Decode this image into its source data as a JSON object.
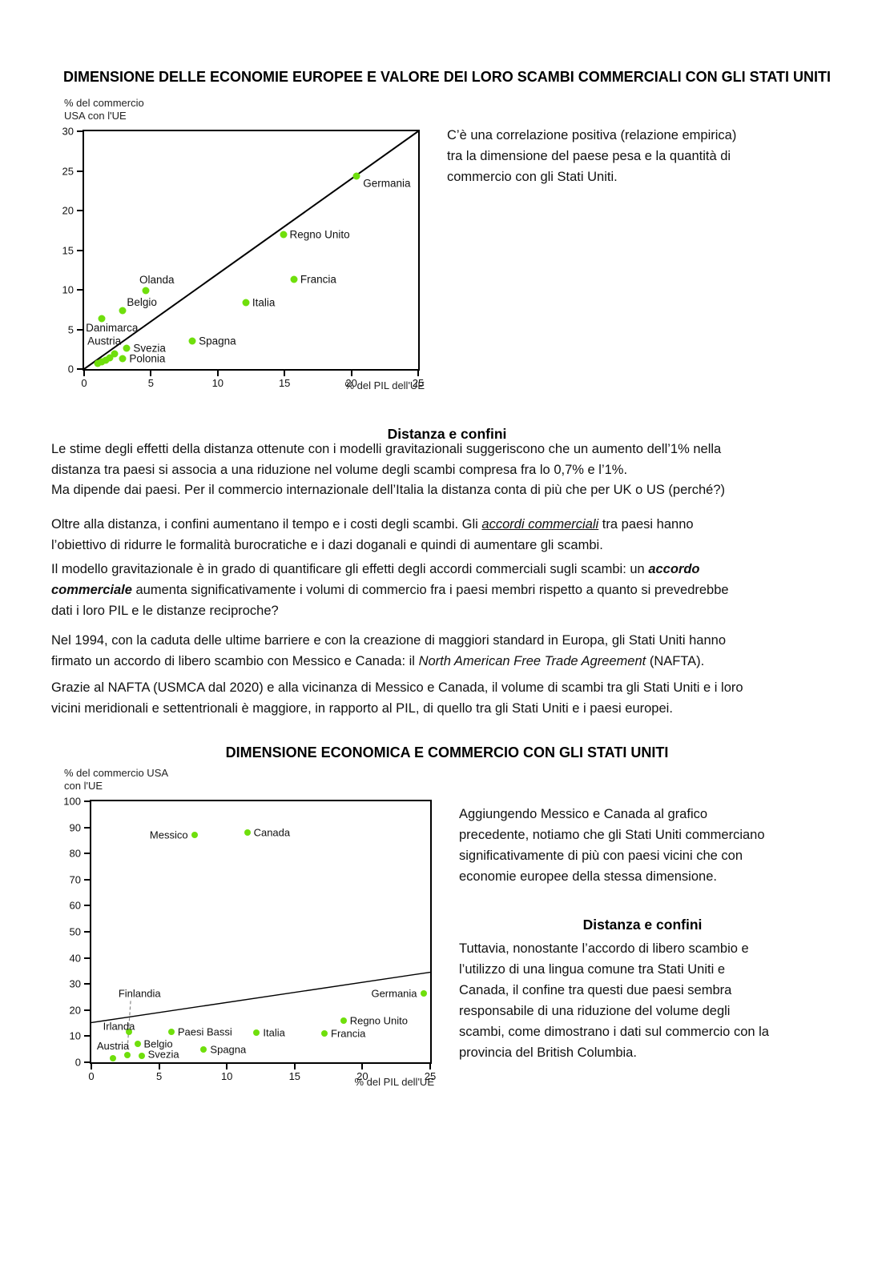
{
  "colors": {
    "dot": "#6FDF0C",
    "axis": "#000000",
    "text": "#111111",
    "connector": "#888888"
  },
  "texts": {
    "side1": "C’è una correlazione positiva (relazione empirica)\ntra la dimensione del paese pesa e la quantità di\ncommercio con gli Stati Uniti.",
    "heading_distanza1": "Distanza e confini",
    "body": [
      {
        "segments": [
          {
            "t": "Le stime degli effetti della distanza ottenute con i modelli gravitazionali suggeriscono che un aumento dell’1% nella\ndistanza tra paesi si associa a una riduzione nel volume degli scambi compresa fra lo 0,7% e l’1%."
          }
        ]
      },
      {
        "segments": [
          {
            "t": "Ma dipende dai paesi. Per il commercio internazionale dell’Italia la distanza conta di più che per UK o US (perché?)"
          }
        ]
      },
      {
        "segments": [
          {
            "t": "Oltre alla distanza, i confini aumentano il tempo e i costi degli scambi. Gli "
          },
          {
            "t": "accordi commerciali",
            "style": "italic-underline"
          },
          {
            "t": " tra paesi hanno\nl’obiettivo di ridurre le formalità burocratiche e i dazi doganali e quindi di aumentare gli scambi."
          }
        ]
      },
      {
        "segments": [
          {
            "t": "Il modello gravitazionale è in grado di quantificare gli effetti degli accordi commerciali sugli scambi: un "
          },
          {
            "t": "accordo\ncommerciale",
            "style": "bold-italic"
          },
          {
            "t": " aumenta significativamente i volumi di commercio fra i paesi membri rispetto a quanto si prevedrebbe\ndati i loro PIL e le distanze reciproche?"
          }
        ]
      },
      {
        "segments": [
          {
            "t": "Nel 1994, con la caduta delle ultime barriere e con la creazione di maggiori standard in Europa, gli Stati Uniti hanno\nfirmato un accordo di libero scambio con Messico e Canada: il "
          },
          {
            "t": "North American Free Trade Agreement",
            "style": "italic"
          },
          {
            "t": " (NAFTA)."
          }
        ]
      },
      {
        "segments": [
          {
            "t": "Grazie al NAFTA (USMCA dal 2020) e alla vicinanza di Messico e Canada, il volume di scambi tra gli Stati Uniti e i loro\nvicini meridionali e settentrionali è maggiore, in rapporto al PIL, di quello tra gli Stati Uniti e i paesi europei."
          }
        ]
      }
    ],
    "side2_p1": "Aggiungendo Messico e Canada al grafico\nprecedente, notiamo che gli Stati Uniti commerciano\nsignificativamente di più con paesi vicini che con\neconomie europee della stessa dimensione.",
    "heading_distanza2": "Distanza e confini",
    "side2_p2": "Tuttavia, nonostante l’accordo di libero scambio e\nl’utilizzo di una lingua comune tra Stati Uniti e\nCanada, il confine tra questi due paesi sembra\nresponsabile di una riduzione del volume degli\nscambi, come dimostrano i dati sul commercio con la\nprovincia del British Columbia."
  },
  "chart_data": [
    {
      "type": "scatter",
      "title": "DIMENSIONE DELLE ECONOMIE EUROPEE E VALORE DEI LORO SCAMBI COMMERCIALI CON GLI STATI UNITI",
      "ylabel_lines": [
        "% del commercio",
        "USA con l'UE"
      ],
      "xlabel": "% del PIL dell'UE",
      "xlim": [
        0,
        25
      ],
      "ylim": [
        0,
        30
      ],
      "xticks": [
        0,
        5,
        10,
        15,
        20,
        25
      ],
      "yticks": [
        0,
        5,
        10,
        15,
        20,
        25,
        30
      ],
      "grid": false,
      "legend": false,
      "ref_line": {
        "x1": 0,
        "y1": 0,
        "x2": 25,
        "y2": 30
      },
      "points": [
        {
          "label": "Germania",
          "x": 20.4,
          "y": 24.3,
          "pos": "right",
          "ldy": 9
        },
        {
          "label": "Regno Unito",
          "x": 14.9,
          "y": 17.0,
          "pos": "right"
        },
        {
          "label": "Francia",
          "x": 15.7,
          "y": 11.3,
          "pos": "right"
        },
        {
          "label": "Italia",
          "x": 12.1,
          "y": 8.4,
          "pos": "right"
        },
        {
          "label": "Olanda",
          "x": 4.6,
          "y": 9.9,
          "pos": "above",
          "ldx": 14
        },
        {
          "label": "Belgio",
          "x": 2.9,
          "y": 7.4,
          "pos": "above-right"
        },
        {
          "label": "Danimarca",
          "x": 1.3,
          "y": 6.4,
          "pos": "below-left"
        },
        {
          "label": "Spagna",
          "x": 8.1,
          "y": 3.5,
          "pos": "right"
        },
        {
          "label": "Svezia",
          "x": 3.2,
          "y": 2.6,
          "pos": "right"
        },
        {
          "label": "Polonia",
          "x": 2.9,
          "y": 1.3,
          "pos": "right"
        }
      ],
      "extra_points": [
        [
          1.0,
          0.7
        ],
        [
          1.3,
          0.9
        ],
        [
          1.6,
          1.1
        ],
        [
          1.9,
          1.4
        ],
        [
          2.3,
          1.9
        ]
      ],
      "annotations": [
        {
          "text": "Austria",
          "x": 0.25,
          "y": 3.5
        }
      ]
    },
    {
      "type": "scatter",
      "title": "DIMENSIONE ECONOMICA E COMMERCIO CON GLI STATI UNITI",
      "ylabel_lines": [
        "% del commercio USA",
        "con l'UE"
      ],
      "xlabel": "% del PIL dell'UE",
      "xlim": [
        0,
        25
      ],
      "ylim": [
        0,
        100
      ],
      "xticks": [
        0,
        5,
        10,
        15,
        20,
        25
      ],
      "yticks": [
        0,
        10,
        20,
        30,
        40,
        50,
        60,
        70,
        80,
        90,
        100
      ],
      "grid": false,
      "legend": false,
      "ref_line": {
        "x1": 0,
        "y1": 15.2,
        "x2": 25,
        "y2": 34.5
      },
      "connectors": [
        {
          "x1": 2.9,
          "y1": 23.5,
          "x2": 2.65,
          "y2": 4.2
        }
      ],
      "points": [
        {
          "label": "Messico",
          "x": 7.6,
          "y": 87,
          "pos": "left"
        },
        {
          "label": "Canada",
          "x": 11.5,
          "y": 88,
          "pos": "right"
        },
        {
          "label": "Germania",
          "x": 24.5,
          "y": 26.5,
          "pos": "left"
        },
        {
          "label": "Regno Unito",
          "x": 18.6,
          "y": 15.8,
          "pos": "right"
        },
        {
          "label": "Francia",
          "x": 17.2,
          "y": 11.0,
          "pos": "right"
        },
        {
          "label": "Italia",
          "x": 12.2,
          "y": 11.2,
          "pos": "right"
        },
        {
          "label": "Paesi Bassi",
          "x": 5.9,
          "y": 11.7,
          "pos": "right"
        },
        {
          "label": "Irlanda",
          "x": 2.8,
          "y": 11.7,
          "pos": "left",
          "ldx": 15,
          "ldy": -7
        },
        {
          "label": "Belgio",
          "x": 3.4,
          "y": 7.2,
          "pos": "right"
        },
        {
          "label": "Spagna",
          "x": 8.3,
          "y": 5.0,
          "pos": "right"
        },
        {
          "label": "Svezia",
          "x": 3.7,
          "y": 2.5,
          "pos": "right",
          "ldy": -2
        },
        {
          "label": "Austria",
          "x": 1.6,
          "y": 1.5,
          "pos": "above",
          "ldy": -2
        },
        {
          "label": "Finlandia",
          "x": 2.65,
          "y": 2.8,
          "pos": "none"
        }
      ],
      "annotations": [
        {
          "text": "Finlandia",
          "x": 2.0,
          "y": 26.5
        }
      ]
    }
  ]
}
